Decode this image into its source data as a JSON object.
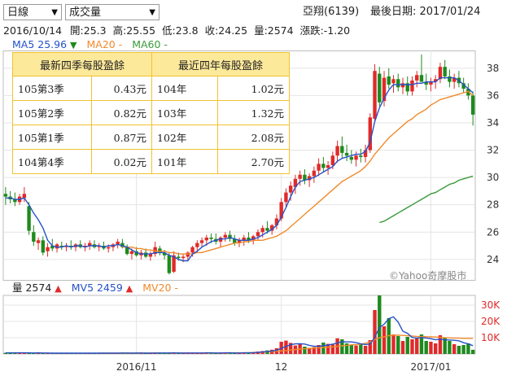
{
  "controls": {
    "period_select": "日線",
    "indicator_select": "成交量"
  },
  "header": {
    "stock": "亞翔(6139)",
    "last_date_label": "最後日期: 2017/01/24"
  },
  "ohlc_line": {
    "date": "2016/10/14",
    "open": "開:25.3",
    "high": "高:25.55",
    "low": "低:23.8",
    "close": "收:24.25",
    "volume": "量:2574",
    "change": "漲跌:-1.20"
  },
  "price_legend": {
    "ma5": "MA5 25.96",
    "ma5_arrow": "▼",
    "ma20": "MA20 -",
    "ma60": "MA60 -"
  },
  "volume_legend": {
    "vol": "量 2574",
    "vol_arrow": "▲",
    "mv5": "MV5 2459",
    "mv5_arrow": "▲",
    "mv20": "MV20 -"
  },
  "watermark": "©Yahoo奇摩股市",
  "eps_table": {
    "head_left": "最新四季每股盈餘",
    "head_right": "最近四年每股盈餘",
    "rows": [
      {
        "q": "105第3季",
        "qv": "0.43元",
        "y": "104年",
        "yv": "1.02元"
      },
      {
        "q": "105第2季",
        "qv": "0.82元",
        "y": "103年",
        "yv": "1.32元"
      },
      {
        "q": "105第1季",
        "qv": "0.87元",
        "y": "102年",
        "yv": "2.08元"
      },
      {
        "q": "104第4季",
        "qv": "0.02元",
        "y": "101年",
        "yv": "2.70元"
      }
    ]
  },
  "colors": {
    "up": "#e02a2a",
    "down": "#1e8a1e",
    "ma5": "#2552c8",
    "ma20": "#f08a2c",
    "ma60": "#3a9a3a",
    "grid": "#e4e4e4"
  },
  "chart_data": [
    {
      "type": "candlestick",
      "title": "",
      "y_ticks": [
        24,
        26,
        28,
        30,
        32,
        34,
        36,
        38
      ],
      "ylim": [
        22.5,
        39.3
      ],
      "x_ticks": [
        "2016/11",
        "12",
        "2017/01"
      ],
      "x_tick_index": [
        28,
        59,
        91
      ],
      "candles": [
        {
          "o": 28.8,
          "h": 29.3,
          "l": 28.0,
          "c": 28.6
        },
        {
          "o": 28.6,
          "h": 29.0,
          "l": 28.1,
          "c": 28.4
        },
        {
          "o": 28.4,
          "h": 28.9,
          "l": 27.9,
          "c": 28.2
        },
        {
          "o": 28.2,
          "h": 28.8,
          "l": 28.0,
          "c": 28.6
        },
        {
          "o": 28.5,
          "h": 29.3,
          "l": 28.2,
          "c": 28.8
        },
        {
          "o": 27.9,
          "h": 28.2,
          "l": 25.8,
          "c": 26.1
        },
        {
          "o": 26.0,
          "h": 26.5,
          "l": 25.0,
          "c": 25.3
        },
        {
          "o": 25.2,
          "h": 25.6,
          "l": 24.7,
          "c": 25.4
        },
        {
          "o": 25.4,
          "h": 25.7,
          "l": 24.3,
          "c": 24.5
        },
        {
          "o": 24.6,
          "h": 25.2,
          "l": 24.2,
          "c": 24.9
        },
        {
          "o": 25.0,
          "h": 25.5,
          "l": 24.6,
          "c": 24.8
        },
        {
          "o": 24.8,
          "h": 25.2,
          "l": 24.5,
          "c": 25.1
        },
        {
          "o": 25.0,
          "h": 25.3,
          "l": 24.7,
          "c": 24.9
        },
        {
          "o": 24.9,
          "h": 25.2,
          "l": 24.6,
          "c": 25.0
        },
        {
          "o": 25.0,
          "h": 25.4,
          "l": 24.7,
          "c": 24.9
        },
        {
          "o": 24.9,
          "h": 25.2,
          "l": 24.6,
          "c": 25.1
        },
        {
          "o": 25.1,
          "h": 25.4,
          "l": 24.8,
          "c": 24.9
        },
        {
          "o": 24.9,
          "h": 25.2,
          "l": 24.6,
          "c": 25.0
        },
        {
          "o": 25.0,
          "h": 25.4,
          "l": 24.7,
          "c": 25.2
        },
        {
          "o": 25.1,
          "h": 25.4,
          "l": 24.8,
          "c": 24.9
        },
        {
          "o": 24.9,
          "h": 25.2,
          "l": 24.6,
          "c": 25.0
        },
        {
          "o": 25.0,
          "h": 25.3,
          "l": 24.7,
          "c": 24.8
        },
        {
          "o": 24.8,
          "h": 25.1,
          "l": 24.5,
          "c": 24.9
        },
        {
          "o": 24.9,
          "h": 25.2,
          "l": 24.6,
          "c": 25.1
        },
        {
          "o": 25.1,
          "h": 25.5,
          "l": 24.8,
          "c": 25.3
        },
        {
          "o": 25.2,
          "h": 25.5,
          "l": 24.8,
          "c": 24.9
        },
        {
          "o": 24.9,
          "h": 25.1,
          "l": 24.3,
          "c": 24.4
        },
        {
          "o": 24.4,
          "h": 24.8,
          "l": 24.0,
          "c": 24.6
        },
        {
          "o": 24.6,
          "h": 24.9,
          "l": 24.2,
          "c": 24.3
        },
        {
          "o": 24.3,
          "h": 24.7,
          "l": 24.0,
          "c": 24.5
        },
        {
          "o": 24.5,
          "h": 24.8,
          "l": 24.1,
          "c": 24.2
        },
        {
          "o": 24.2,
          "h": 24.6,
          "l": 23.9,
          "c": 24.4
        },
        {
          "o": 24.4,
          "h": 25.3,
          "l": 24.2,
          "c": 24.9
        },
        {
          "o": 24.8,
          "h": 25.0,
          "l": 24.3,
          "c": 24.5
        },
        {
          "o": 24.5,
          "h": 24.7,
          "l": 24.0,
          "c": 24.3
        },
        {
          "o": 24.3,
          "h": 24.5,
          "l": 22.9,
          "c": 23.0
        },
        {
          "o": 23.1,
          "h": 24.6,
          "l": 23.0,
          "c": 24.3
        },
        {
          "o": 24.2,
          "h": 24.5,
          "l": 23.9,
          "c": 24.1
        },
        {
          "o": 24.1,
          "h": 24.4,
          "l": 23.8,
          "c": 24.2
        },
        {
          "o": 24.2,
          "h": 24.6,
          "l": 23.9,
          "c": 24.5
        },
        {
          "o": 24.5,
          "h": 25.0,
          "l": 24.2,
          "c": 24.9
        },
        {
          "o": 24.9,
          "h": 25.4,
          "l": 24.5,
          "c": 25.2
        },
        {
          "o": 25.2,
          "h": 25.6,
          "l": 24.9,
          "c": 25.4
        },
        {
          "o": 25.4,
          "h": 25.8,
          "l": 25.0,
          "c": 25.6
        },
        {
          "o": 25.6,
          "h": 25.9,
          "l": 25.2,
          "c": 25.5
        },
        {
          "o": 25.5,
          "h": 25.9,
          "l": 25.1,
          "c": 25.3
        },
        {
          "o": 25.3,
          "h": 25.7,
          "l": 24.9,
          "c": 25.6
        },
        {
          "o": 25.6,
          "h": 26.0,
          "l": 25.3,
          "c": 25.8
        },
        {
          "o": 25.8,
          "h": 26.1,
          "l": 25.3,
          "c": 25.5
        },
        {
          "o": 25.5,
          "h": 25.8,
          "l": 25.0,
          "c": 25.2
        },
        {
          "o": 25.2,
          "h": 25.6,
          "l": 24.9,
          "c": 25.4
        },
        {
          "o": 25.4,
          "h": 25.8,
          "l": 25.0,
          "c": 25.6
        },
        {
          "o": 25.6,
          "h": 26.0,
          "l": 25.2,
          "c": 25.4
        },
        {
          "o": 25.4,
          "h": 25.8,
          "l": 25.1,
          "c": 25.7
        },
        {
          "o": 25.7,
          "h": 26.2,
          "l": 25.4,
          "c": 26.0
        },
        {
          "o": 26.0,
          "h": 26.5,
          "l": 25.6,
          "c": 26.3
        },
        {
          "o": 26.3,
          "h": 26.8,
          "l": 25.9,
          "c": 26.1
        },
        {
          "o": 26.1,
          "h": 26.6,
          "l": 25.8,
          "c": 26.5
        },
        {
          "o": 26.5,
          "h": 27.3,
          "l": 26.2,
          "c": 27.0
        },
        {
          "o": 27.0,
          "h": 28.5,
          "l": 26.8,
          "c": 28.2
        },
        {
          "o": 28.2,
          "h": 29.2,
          "l": 27.8,
          "c": 28.9
        },
        {
          "o": 28.9,
          "h": 29.7,
          "l": 28.3,
          "c": 29.4
        },
        {
          "o": 29.3,
          "h": 30.2,
          "l": 28.8,
          "c": 29.9
        },
        {
          "o": 29.9,
          "h": 30.5,
          "l": 29.4,
          "c": 30.2
        },
        {
          "o": 30.2,
          "h": 30.6,
          "l": 29.5,
          "c": 29.8
        },
        {
          "o": 29.8,
          "h": 30.3,
          "l": 29.3,
          "c": 30.1
        },
        {
          "o": 30.1,
          "h": 30.8,
          "l": 29.6,
          "c": 30.5
        },
        {
          "o": 30.5,
          "h": 31.4,
          "l": 30.1,
          "c": 31.0
        },
        {
          "o": 31.0,
          "h": 31.5,
          "l": 30.4,
          "c": 30.7
        },
        {
          "o": 30.7,
          "h": 31.2,
          "l": 30.2,
          "c": 30.9
        },
        {
          "o": 30.9,
          "h": 31.9,
          "l": 30.6,
          "c": 31.6
        },
        {
          "o": 31.6,
          "h": 32.7,
          "l": 31.1,
          "c": 32.3
        },
        {
          "o": 32.3,
          "h": 33.0,
          "l": 31.4,
          "c": 31.8
        },
        {
          "o": 31.8,
          "h": 32.4,
          "l": 31.2,
          "c": 31.6
        },
        {
          "o": 31.5,
          "h": 32.0,
          "l": 31.0,
          "c": 31.3
        },
        {
          "o": 31.3,
          "h": 31.9,
          "l": 30.8,
          "c": 31.6
        },
        {
          "o": 31.6,
          "h": 32.1,
          "l": 31.1,
          "c": 31.5
        },
        {
          "o": 31.5,
          "h": 32.4,
          "l": 31.1,
          "c": 32.0
        },
        {
          "o": 32.0,
          "h": 34.7,
          "l": 31.8,
          "c": 34.4
        },
        {
          "o": 34.3,
          "h": 38.3,
          "l": 34.0,
          "c": 37.8
        },
        {
          "o": 37.6,
          "h": 38.1,
          "l": 35.2,
          "c": 35.5
        },
        {
          "o": 35.6,
          "h": 37.8,
          "l": 35.2,
          "c": 37.3
        },
        {
          "o": 37.4,
          "h": 38.0,
          "l": 36.5,
          "c": 36.8
        },
        {
          "o": 36.9,
          "h": 37.5,
          "l": 36.2,
          "c": 37.2
        },
        {
          "o": 37.2,
          "h": 37.6,
          "l": 36.3,
          "c": 36.6
        },
        {
          "o": 36.6,
          "h": 37.3,
          "l": 36.1,
          "c": 36.9
        },
        {
          "o": 36.9,
          "h": 37.4,
          "l": 36.0,
          "c": 36.3
        },
        {
          "o": 36.3,
          "h": 37.4,
          "l": 36.0,
          "c": 37.1
        },
        {
          "o": 37.1,
          "h": 37.8,
          "l": 36.6,
          "c": 37.5
        },
        {
          "o": 37.5,
          "h": 39.0,
          "l": 37.1,
          "c": 37.0
        },
        {
          "o": 37.0,
          "h": 37.6,
          "l": 36.4,
          "c": 36.8
        },
        {
          "o": 36.8,
          "h": 37.3,
          "l": 36.3,
          "c": 37.0
        },
        {
          "o": 37.0,
          "h": 37.5,
          "l": 36.5,
          "c": 37.2
        },
        {
          "o": 37.2,
          "h": 38.4,
          "l": 36.9,
          "c": 38.1
        },
        {
          "o": 38.1,
          "h": 38.6,
          "l": 37.2,
          "c": 37.4
        },
        {
          "o": 37.4,
          "h": 37.9,
          "l": 36.6,
          "c": 37.0
        },
        {
          "o": 37.0,
          "h": 37.6,
          "l": 36.5,
          "c": 37.3
        },
        {
          "o": 37.3,
          "h": 37.8,
          "l": 36.6,
          "c": 36.9
        },
        {
          "o": 36.9,
          "h": 37.3,
          "l": 36.2,
          "c": 36.5
        },
        {
          "o": 36.5,
          "h": 36.9,
          "l": 35.7,
          "c": 36.0
        },
        {
          "o": 36.0,
          "h": 36.3,
          "l": 33.8,
          "c": 34.6
        }
      ],
      "ma5": [
        28.5,
        28.5,
        28.4,
        28.4,
        28.5,
        28.0,
        27.4,
        26.9,
        26.3,
        25.4,
        25.0,
        24.9,
        24.9,
        25.0,
        24.9,
        25.0,
        25.0,
        24.9,
        25.0,
        25.0,
        25.0,
        24.9,
        25.0,
        25.0,
        25.1,
        25.0,
        24.9,
        24.7,
        24.5,
        24.4,
        24.4,
        24.4,
        24.5,
        24.5,
        24.5,
        24.3,
        24.2,
        24.0,
        23.9,
        23.9,
        24.4,
        24.6,
        24.9,
        25.1,
        25.3,
        25.4,
        25.5,
        25.5,
        25.6,
        25.5,
        25.4,
        25.4,
        25.4,
        25.5,
        25.6,
        25.8,
        26.0,
        26.2,
        26.5,
        27.1,
        27.8,
        28.6,
        29.3,
        29.7,
        29.8,
        29.9,
        30.0,
        30.2,
        30.4,
        30.6,
        30.8,
        31.2,
        31.4,
        31.5,
        31.6,
        31.7,
        31.7,
        31.9,
        32.6,
        34.1,
        35.1,
        35.8,
        36.4,
        36.8,
        36.8,
        36.8,
        36.8,
        36.8,
        36.9,
        36.9,
        37.0,
        37.0,
        37.0,
        37.3,
        37.3,
        37.3,
        37.3,
        37.1,
        36.8,
        36.5,
        36.2
      ],
      "ma20_start": 25,
      "ma20": [
        24.9,
        24.9,
        24.9,
        24.8,
        24.8,
        24.7,
        24.7,
        24.6,
        24.6,
        24.6,
        24.5,
        24.5,
        24.4,
        24.4,
        24.4,
        24.4,
        24.5,
        24.5,
        24.6,
        24.7,
        24.8,
        24.9,
        25.0,
        25.1,
        25.2,
        25.2,
        25.3,
        25.3,
        25.4,
        25.4,
        25.4,
        25.5,
        25.6,
        25.7,
        25.9,
        26.1,
        26.4,
        26.7,
        27.0,
        27.3,
        27.6,
        27.9,
        28.2,
        28.5,
        28.8,
        29.1,
        29.4,
        29.7,
        29.9,
        30.1,
        30.3,
        30.5,
        30.8,
        31.2,
        31.7,
        32.1,
        32.5,
        32.9,
        33.2,
        33.5,
        33.8,
        34.1,
        34.3,
        34.6,
        34.8,
        35.0,
        35.3,
        35.5,
        35.7,
        35.8,
        35.9,
        36.0,
        36.1,
        36.2,
        36.3,
        36.0
      ],
      "ma60_start": 80,
      "ma60": [
        26.7,
        26.8,
        27.0,
        27.2,
        27.4,
        27.6,
        27.8,
        28.0,
        28.2,
        28.4,
        28.6,
        28.8,
        28.9,
        29.1,
        29.3,
        29.5,
        29.6,
        29.8,
        29.9,
        30.0,
        30.1
      ]
    },
    {
      "type": "bar",
      "title": "",
      "y_ticks": [
        "10K",
        "20K",
        "30K"
      ],
      "y_tick_values": [
        10000,
        20000,
        30000
      ],
      "ylim": [
        0,
        36000
      ],
      "volumes": [
        700,
        600,
        800,
        500,
        900,
        600,
        700,
        500,
        600,
        400,
        500,
        400,
        500,
        400,
        600,
        500,
        400,
        500,
        600,
        400,
        500,
        700,
        400,
        500,
        600,
        700,
        500,
        400,
        600,
        500,
        400,
        600,
        700,
        800,
        500,
        900,
        600,
        500,
        400,
        600,
        700,
        800,
        600,
        700,
        500,
        600,
        800,
        700,
        500,
        600,
        700,
        900,
        1000,
        1200,
        1500,
        1800,
        2200,
        2600,
        3500,
        7500,
        8200,
        6800,
        5200,
        6000,
        4500,
        3800,
        4200,
        5500,
        7000,
        6200,
        5800,
        9600,
        9000,
        6500,
        5800,
        5200,
        6000,
        5000,
        8500,
        27000,
        36000,
        17000,
        22000,
        12000,
        11000,
        8000,
        10500,
        9000,
        9500,
        12000,
        8000,
        7500,
        6500,
        11500,
        10000,
        8000,
        6000,
        5000,
        5500,
        6500,
        2574
      ],
      "mv5": [
        700,
        700,
        700,
        700,
        700,
        700,
        600,
        700,
        600,
        600,
        500,
        500,
        500,
        500,
        500,
        500,
        500,
        500,
        500,
        500,
        500,
        500,
        500,
        500,
        500,
        600,
        600,
        500,
        600,
        600,
        500,
        500,
        600,
        600,
        600,
        600,
        700,
        600,
        600,
        600,
        600,
        600,
        600,
        700,
        700,
        600,
        600,
        700,
        700,
        600,
        600,
        700,
        700,
        800,
        1000,
        1200,
        1500,
        1800,
        2300,
        3500,
        4600,
        5700,
        6200,
        6300,
        6100,
        5300,
        4700,
        4700,
        5000,
        5500,
        6000,
        6800,
        7500,
        7400,
        7400,
        7000,
        6200,
        5800,
        6100,
        10300,
        16200,
        18300,
        21700,
        22800,
        19600,
        14000,
        12700,
        10100,
        9800,
        10100,
        9800,
        9400,
        8700,
        9100,
        8700,
        8600,
        8400,
        8100,
        6900,
        6200,
        5100
      ],
      "mv20_start": 20,
      "mv20": [
        500,
        500,
        500,
        500,
        500,
        500,
        500,
        500,
        500,
        600,
        600,
        600,
        600,
        600,
        600,
        600,
        600,
        600,
        600,
        600,
        600,
        600,
        600,
        600,
        600,
        600,
        600,
        600,
        700,
        700,
        700,
        700,
        800,
        900,
        1000,
        1100,
        1300,
        1500,
        1700,
        1900,
        2100,
        2400,
        2700,
        3000,
        3200,
        3400,
        3600,
        3800,
        4000,
        4200,
        4400,
        4700,
        5000,
        5300,
        5600,
        5800,
        6000,
        6500,
        7400,
        8800,
        10000,
        10600,
        11200,
        11500,
        11600,
        11400,
        11200,
        11000,
        10800,
        10700,
        10600,
        10500,
        10400,
        10200,
        10000,
        9900,
        9800,
        9700,
        9600,
        9600,
        9600
      ]
    }
  ]
}
